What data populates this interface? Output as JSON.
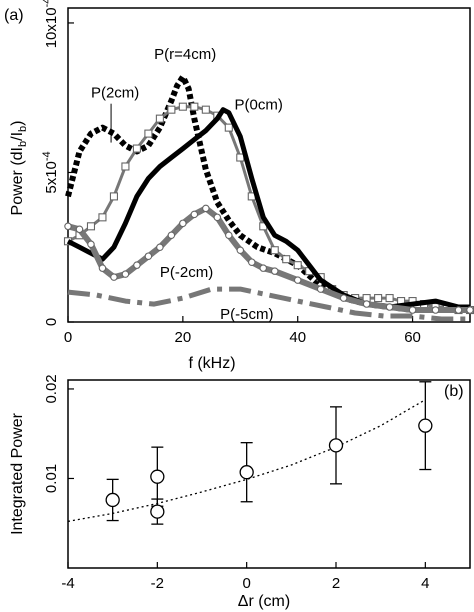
{
  "chart_data": [
    {
      "type": "line",
      "panel_label": "(a)",
      "xlabel": "f (kHz)",
      "ylabel_main": "Power (dI",
      "ylabel_sub1": "b",
      "ylabel_mid": "/I",
      "ylabel_sub2": "b",
      "ylabel_end": ")",
      "xlim": [
        0,
        70
      ],
      "ylim": [
        0,
        0.00105
      ],
      "xticks": [
        "0",
        "20",
        "40",
        "60"
      ],
      "yticks": [
        "0",
        "5x10",
        "10x10"
      ],
      "ytick_exp": "-4",
      "grid": false,
      "series": [
        {
          "name": "P(r=4cm)",
          "style": "dotted-thick",
          "color": "#000000",
          "x": [
            0,
            2,
            4,
            6,
            8,
            10,
            12,
            14,
            16,
            18,
            19,
            20,
            21,
            22,
            24,
            26,
            28,
            30,
            33,
            36,
            40,
            44,
            48,
            52,
            56,
            60,
            64,
            68,
            70
          ],
          "y": [
            0.00042,
            0.00057,
            0.00063,
            0.00065,
            0.00063,
            0.00059,
            0.00057,
            0.00059,
            0.00065,
            0.00074,
            0.00079,
            0.00082,
            0.00078,
            0.00068,
            0.00051,
            0.0004,
            0.00034,
            0.00029,
            0.00025,
            0.00023,
            0.00019,
            0.00012,
            8e-05,
            6e-05,
            5e-05,
            4e-05,
            4e-05,
            4e-05,
            4e-05
          ]
        },
        {
          "name": "P(2cm)",
          "style": "solid-squares",
          "color": "#777777",
          "x": [
            0,
            2,
            4,
            6,
            8,
            10,
            12,
            14,
            16,
            18,
            20,
            22,
            24,
            26,
            28,
            30,
            32,
            34,
            36,
            38,
            40,
            42,
            44,
            46,
            48,
            50,
            52,
            54,
            56,
            58,
            60,
            62,
            64,
            66,
            68,
            70
          ],
          "y": [
            0.00027,
            0.00029,
            0.00032,
            0.00035,
            0.00042,
            0.00052,
            0.00058,
            0.00063,
            0.00068,
            0.00071,
            0.00072,
            0.00072,
            0.00071,
            0.00069,
            0.00065,
            0.00055,
            0.00042,
            0.00032,
            0.00024,
            0.00021,
            0.00019,
            0.00017,
            0.00015,
            0.00011,
            9e-05,
            8e-05,
            8e-05,
            8e-05,
            8e-05,
            7e-05,
            7e-05,
            6e-05,
            5e-05,
            5e-05,
            4e-05,
            4e-05
          ]
        },
        {
          "name": "P(0cm)",
          "style": "solid-thick",
          "color": "#000000",
          "x": [
            0,
            2,
            4,
            6,
            8,
            10,
            12,
            14,
            16,
            18,
            20,
            22,
            24,
            26,
            27,
            28,
            30,
            32,
            34,
            36,
            38,
            40,
            42,
            44,
            48,
            52,
            56,
            60,
            64,
            68,
            70
          ],
          "y": [
            0.00027,
            0.00025,
            0.00023,
            0.00021,
            0.00025,
            0.00033,
            0.00042,
            0.00048,
            0.00052,
            0.00055,
            0.00058,
            0.00061,
            0.00064,
            0.00068,
            0.00071,
            0.0007,
            0.00062,
            0.00048,
            0.00035,
            0.00029,
            0.00027,
            0.00024,
            0.00019,
            0.00014,
            9e-05,
            6e-05,
            5e-05,
            6e-05,
            7e-05,
            5e-05,
            5e-05
          ]
        },
        {
          "name": "P(-2cm)",
          "style": "solid-circles",
          "color": "#777777",
          "x": [
            0,
            2,
            4,
            6,
            8,
            10,
            12,
            14,
            16,
            18,
            20,
            22,
            24,
            26,
            28,
            30,
            32,
            34,
            36,
            40,
            44,
            48,
            52,
            56,
            60,
            64,
            68,
            70
          ],
          "y": [
            0.00032,
            0.00031,
            0.00026,
            0.00018,
            0.00015,
            0.00016,
            0.00019,
            0.00022,
            0.00025,
            0.00029,
            0.00033,
            0.00036,
            0.00038,
            0.00035,
            0.00029,
            0.00024,
            0.0002,
            0.00018,
            0.00017,
            0.00014,
            0.00011,
            8e-05,
            6e-05,
            5e-05,
            4e-05,
            4e-05,
            4e-05,
            4e-05
          ]
        },
        {
          "name": "P(-5cm)",
          "style": "dash-dot",
          "color": "#777777",
          "x": [
            0,
            5,
            10,
            15,
            20,
            25,
            30,
            35,
            40,
            45,
            50,
            55,
            60,
            65,
            70
          ],
          "y": [
            0.0001,
            9e-05,
            7e-05,
            6e-05,
            8e-05,
            0.00011,
            0.00011,
            9e-05,
            7e-05,
            5e-05,
            3e-05,
            2e-05,
            2e-05,
            1e-05,
            1e-05
          ]
        }
      ],
      "annotations": [
        {
          "text": "P(r=4cm)",
          "x": 15,
          "y": 0.00088
        },
        {
          "text": "P(2cm)",
          "x": 4,
          "y": 0.00075
        },
        {
          "text": "P(0cm)",
          "x": 29,
          "y": 0.00071
        },
        {
          "text": "P(-2cm)",
          "x": 16,
          "y": 0.00015
        },
        {
          "text": "P(-5cm)",
          "x": 26.5,
          "y": 1e-05
        }
      ]
    },
    {
      "type": "scatter",
      "panel_label": "(b)",
      "xlabel": "Δr (cm)",
      "ylabel": "Integrated Power",
      "xlim": [
        -4,
        5
      ],
      "ylim": [
        0,
        0.021
      ],
      "xticks": [
        "-4",
        "-2",
        "0",
        "2",
        "4"
      ],
      "yticks": [
        "0.01",
        "0.02"
      ],
      "grid": false,
      "points": [
        {
          "x": -3,
          "y": 0.0076,
          "err": 0.0023
        },
        {
          "x": -2,
          "y": 0.0102,
          "err": 0.0033
        },
        {
          "x": -2,
          "y": 0.0063,
          "err": 0.0014
        },
        {
          "x": 0,
          "y": 0.0107,
          "err": 0.0033
        },
        {
          "x": 2,
          "y": 0.0137,
          "err": 0.0043
        },
        {
          "x": 4,
          "y": 0.0159,
          "err": 0.0049
        }
      ],
      "fit": {
        "style": "dotted",
        "x": [
          -4,
          -3,
          -2,
          -1,
          0,
          1,
          2,
          3,
          4
        ],
        "y": [
          0.0052,
          0.0061,
          0.0072,
          0.0085,
          0.0099,
          0.0115,
          0.0135,
          0.0159,
          0.0188
        ]
      }
    }
  ]
}
